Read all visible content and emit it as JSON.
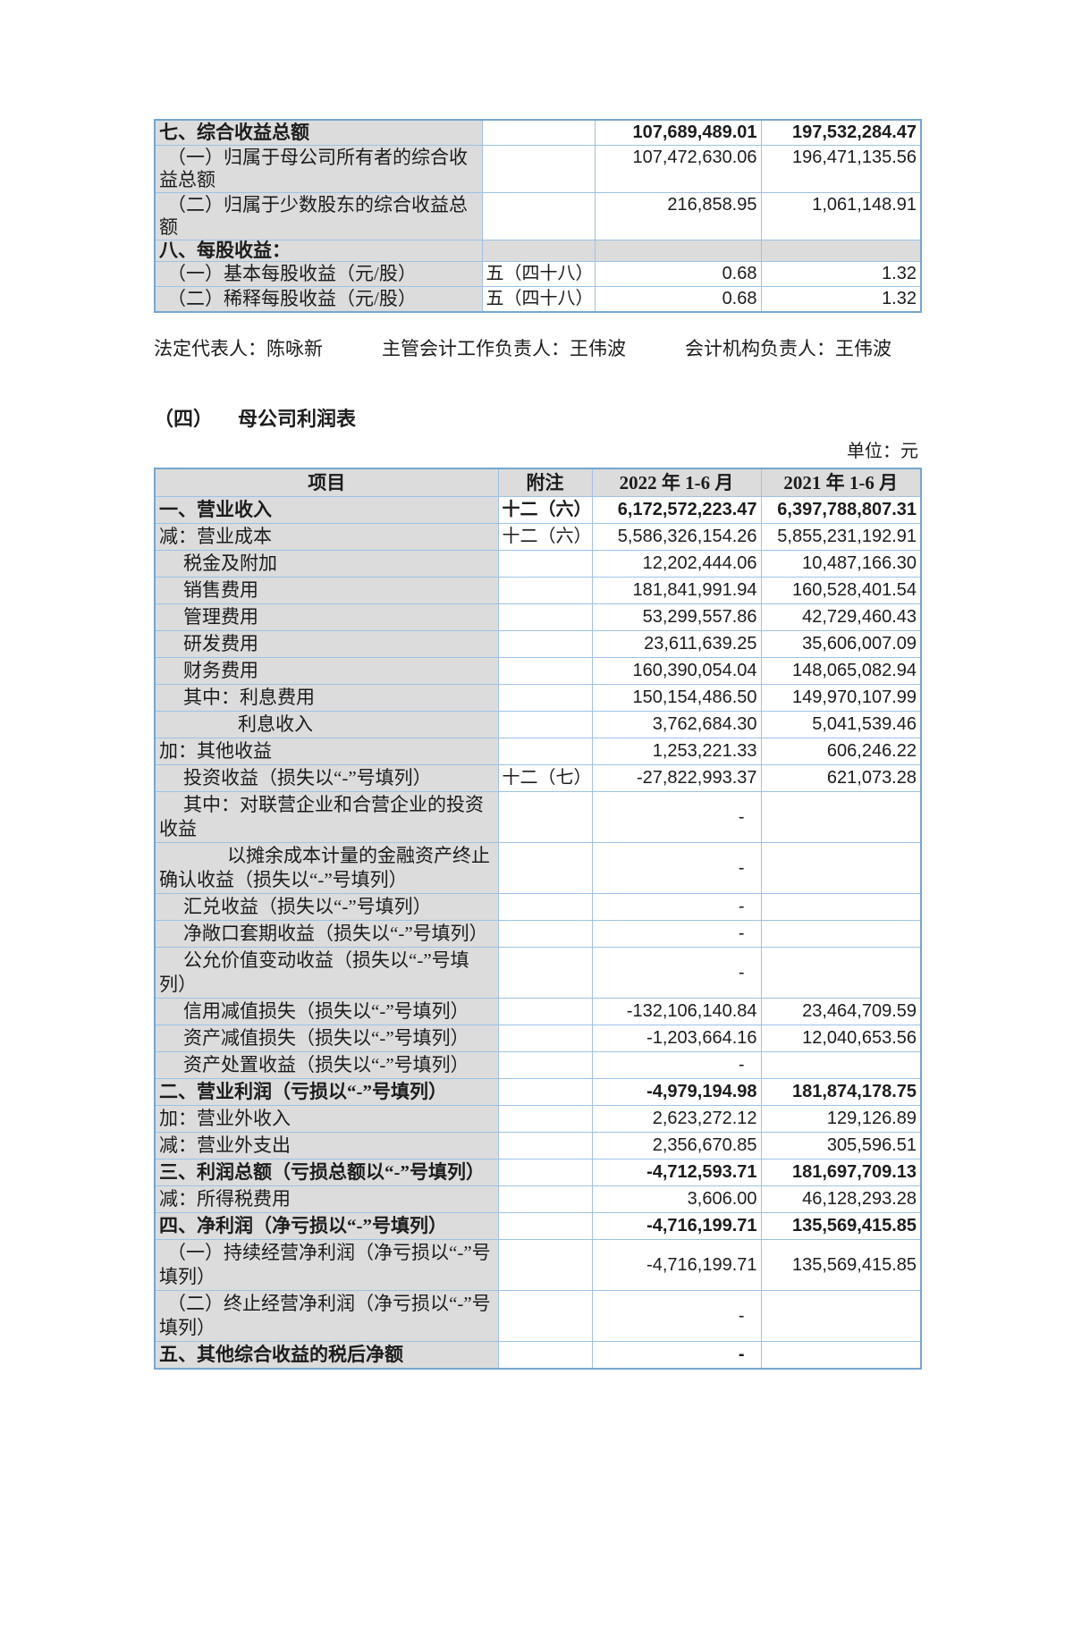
{
  "colors": {
    "border_outer": "#74a6d0",
    "border_inner": "#9cc2e5",
    "cell_gray": "#dcdcdc",
    "text": "#1c1c1c"
  },
  "top_table": {
    "rows": [
      {
        "label": "七、综合收益总额",
        "note": "",
        "v2022": "107,689,489.01",
        "v2021": "197,532,284.47",
        "bold": true,
        "indent": "ind0"
      },
      {
        "label": "（一）归属于母公司所有者的综合收益总额",
        "note": "",
        "v2022": "107,472,630.06",
        "v2021": "196,471,135.56",
        "indent": "indp"
      },
      {
        "label": "（二）归属于少数股东的综合收益总额",
        "note": "",
        "v2022": "216,858.95",
        "v2021": "1,061,148.91",
        "indent": "indp"
      },
      {
        "label": "八、每股收益：",
        "note": "",
        "v2022": "",
        "v2021": "",
        "bold": true,
        "gray_row": true,
        "compact": true,
        "indent": "ind0"
      },
      {
        "label": "（一）基本每股收益（元/股）",
        "note": "五（四十八）",
        "v2022": "0.68",
        "v2021": "1.32",
        "indent": "indp"
      },
      {
        "label": "（二）稀释每股收益（元/股）",
        "note": "五（四十八）",
        "v2022": "0.68",
        "v2021": "1.32",
        "indent": "indp"
      }
    ]
  },
  "signature": {
    "legal_rep": "法定代表人：陈咏新",
    "chief_accountant": "主管会计工作负责人：王伟波",
    "accounting_dept_head": "会计机构负责人：王伟波"
  },
  "section": {
    "number": "（四）",
    "title": "母公司利润表"
  },
  "main_table": {
    "unit_label": "单位：元",
    "headers": [
      "项目",
      "附注",
      "2022 年 1-6 月",
      "2021 年 1-6 月"
    ],
    "rows": [
      {
        "label": "一、营业收入",
        "note": "十二（六）",
        "v2022": "6,172,572,223.47",
        "v2021": "6,397,788,807.31",
        "bold": true,
        "indent": "ind0"
      },
      {
        "label": "减：营业成本",
        "note": "十二（六）",
        "v2022": "5,586,326,154.26",
        "v2021": "5,855,231,192.91",
        "indent": "ind0"
      },
      {
        "label": "税金及附加",
        "note": "",
        "v2022": "12,202,444.06",
        "v2021": "10,487,166.30",
        "indent": "ind1"
      },
      {
        "label": "销售费用",
        "note": "",
        "v2022": "181,841,991.94",
        "v2021": "160,528,401.54",
        "indent": "ind1"
      },
      {
        "label": "管理费用",
        "note": "",
        "v2022": "53,299,557.86",
        "v2021": "42,729,460.43",
        "indent": "ind1"
      },
      {
        "label": "研发费用",
        "note": "",
        "v2022": "23,611,639.25",
        "v2021": "35,606,007.09",
        "indent": "ind1"
      },
      {
        "label": "财务费用",
        "note": "",
        "v2022": "160,390,054.04",
        "v2021": "148,065,082.94",
        "indent": "ind1"
      },
      {
        "label": "其中：利息费用",
        "note": "",
        "v2022": "150,154,486.50",
        "v2021": "149,970,107.99",
        "indent": "ind1"
      },
      {
        "label": "利息收入",
        "note": "",
        "v2022": "3,762,684.30",
        "v2021": "5,041,539.46",
        "indent": "ind2"
      },
      {
        "label": "加：其他收益",
        "note": "",
        "v2022": "1,253,221.33",
        "v2021": "606,246.22",
        "indent": "ind0"
      },
      {
        "label": "投资收益（损失以“-”号填列）",
        "note": "十二（七）",
        "v2022": "-27,822,993.37",
        "v2021": "621,073.28",
        "indent": "ind1"
      },
      {
        "label": "其中：对联营企业和合营企业的投资收益",
        "note": "",
        "v2022": "-",
        "v2021": "",
        "indent": "ind1"
      },
      {
        "label": "以摊余成本计量的金融资产终止确认收益（损失以“-”号填列）",
        "note": "",
        "v2022": "-",
        "v2021": "",
        "indent": "indS"
      },
      {
        "label": "汇兑收益（损失以“-”号填列）",
        "note": "",
        "v2022": "-",
        "v2021": "",
        "indent": "ind1"
      },
      {
        "label": "净敞口套期收益（损失以“-”号填列）",
        "note": "",
        "v2022": "-",
        "v2021": "",
        "indent": "ind1"
      },
      {
        "label": "公允价值变动收益（损失以“-”号填列）",
        "note": "",
        "v2022": "-",
        "v2021": "",
        "indent": "ind1"
      },
      {
        "label": "信用减值损失（损失以“-”号填列）",
        "note": "",
        "v2022": "-132,106,140.84",
        "v2021": "23,464,709.59",
        "indent": "ind1"
      },
      {
        "label": "资产减值损失（损失以“-”号填列）",
        "note": "",
        "v2022": "-1,203,664.16",
        "v2021": "12,040,653.56",
        "indent": "ind1"
      },
      {
        "label": "资产处置收益（损失以“-”号填列）",
        "note": "",
        "v2022": "-",
        "v2021": "",
        "indent": "ind1"
      },
      {
        "label": "二、营业利润（亏损以“-”号填列）",
        "note": "",
        "v2022": "-4,979,194.98",
        "v2021": "181,874,178.75",
        "bold": true,
        "indent": "ind0"
      },
      {
        "label": "加：营业外收入",
        "note": "",
        "v2022": "2,623,272.12",
        "v2021": "129,126.89",
        "indent": "ind0"
      },
      {
        "label": "减：营业外支出",
        "note": "",
        "v2022": "2,356,670.85",
        "v2021": "305,596.51",
        "indent": "ind0"
      },
      {
        "label": "三、利润总额（亏损总额以“-”号填列）",
        "note": "",
        "v2022": "-4,712,593.71",
        "v2021": "181,697,709.13",
        "bold": true,
        "indent": "ind0"
      },
      {
        "label": "减：所得税费用",
        "note": "",
        "v2022": "3,606.00",
        "v2021": "46,128,293.28",
        "indent": "ind0"
      },
      {
        "label": "四、净利润（净亏损以“-”号填列）",
        "note": "",
        "v2022": "-4,716,199.71",
        "v2021": "135,569,415.85",
        "bold": true,
        "indent": "ind0"
      },
      {
        "label": "（一）持续经营净利润（净亏损以“-”号填列）",
        "note": "",
        "v2022": "-4,716,199.71",
        "v2021": "135,569,415.85",
        "indent": "indp"
      },
      {
        "label": "（二）终止经营净利润（净亏损以“-”号填列）",
        "note": "",
        "v2022": "-",
        "v2021": "",
        "indent": "indp"
      },
      {
        "label": "五、其他综合收益的税后净额",
        "note": "",
        "v2022": "-",
        "v2021": "",
        "bold": true,
        "indent": "ind0"
      }
    ]
  }
}
